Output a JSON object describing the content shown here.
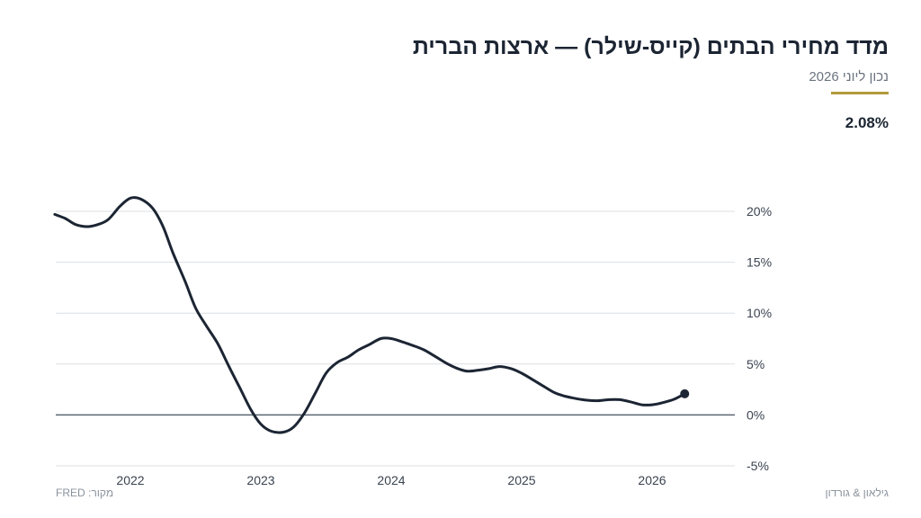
{
  "header": {
    "title": "מדד מחירי הבתים (קייס-שילר) — ארצות הברית",
    "subtitle": "נכון ליוני 2026",
    "latest_value": "2.08%",
    "accent_color": "#b39a3c"
  },
  "footer": {
    "source": "מקור: FRED",
    "brand": "גילאון & גורדון"
  },
  "chart_data": {
    "type": "line",
    "title": "מדד מחירי הבתים (קייס-שילר) — ארצות הברית",
    "ylim": [
      -5,
      20
    ],
    "y_ticks": [
      20,
      15,
      10,
      5,
      0,
      -5
    ],
    "y_tick_labels": [
      "20%",
      "15%",
      "10%",
      "5%",
      "0%",
      "-5%"
    ],
    "x_ticks": [
      2022,
      2023,
      2024,
      2025,
      2026
    ],
    "x_tick_labels": [
      "2022",
      "2023",
      "2024",
      "2025",
      "2026"
    ],
    "grid": true,
    "line_color": "#1c2533",
    "series": [
      {
        "values": [
          {
            "x": 2021.42,
            "y": 19.7
          },
          {
            "x": 2021.5,
            "y": 19.3
          },
          {
            "x": 2021.58,
            "y": 18.7
          },
          {
            "x": 2021.67,
            "y": 18.5
          },
          {
            "x": 2021.75,
            "y": 18.7
          },
          {
            "x": 2021.83,
            "y": 19.2
          },
          {
            "x": 2021.92,
            "y": 20.5
          },
          {
            "x": 2022.0,
            "y": 21.3
          },
          {
            "x": 2022.08,
            "y": 21.2
          },
          {
            "x": 2022.17,
            "y": 20.3
          },
          {
            "x": 2022.25,
            "y": 18.5
          },
          {
            "x": 2022.33,
            "y": 15.8
          },
          {
            "x": 2022.42,
            "y": 13.1
          },
          {
            "x": 2022.5,
            "y": 10.5
          },
          {
            "x": 2022.58,
            "y": 8.8
          },
          {
            "x": 2022.67,
            "y": 7.0
          },
          {
            "x": 2022.75,
            "y": 4.9
          },
          {
            "x": 2022.83,
            "y": 2.9
          },
          {
            "x": 2022.92,
            "y": 0.6
          },
          {
            "x": 2023.0,
            "y": -0.9
          },
          {
            "x": 2023.08,
            "y": -1.6
          },
          {
            "x": 2023.17,
            "y": -1.7
          },
          {
            "x": 2023.25,
            "y": -1.2
          },
          {
            "x": 2023.33,
            "y": 0.1
          },
          {
            "x": 2023.42,
            "y": 2.2
          },
          {
            "x": 2023.5,
            "y": 4.1
          },
          {
            "x": 2023.58,
            "y": 5.1
          },
          {
            "x": 2023.67,
            "y": 5.7
          },
          {
            "x": 2023.75,
            "y": 6.4
          },
          {
            "x": 2023.83,
            "y": 6.9
          },
          {
            "x": 2023.92,
            "y": 7.5
          },
          {
            "x": 2024.0,
            "y": 7.5
          },
          {
            "x": 2024.08,
            "y": 7.2
          },
          {
            "x": 2024.17,
            "y": 6.8
          },
          {
            "x": 2024.25,
            "y": 6.4
          },
          {
            "x": 2024.33,
            "y": 5.8
          },
          {
            "x": 2024.42,
            "y": 5.1
          },
          {
            "x": 2024.5,
            "y": 4.6
          },
          {
            "x": 2024.58,
            "y": 4.3
          },
          {
            "x": 2024.67,
            "y": 4.4
          },
          {
            "x": 2024.75,
            "y": 4.55
          },
          {
            "x": 2024.83,
            "y": 4.75
          },
          {
            "x": 2024.92,
            "y": 4.55
          },
          {
            "x": 2025.0,
            "y": 4.1
          },
          {
            "x": 2025.08,
            "y": 3.5
          },
          {
            "x": 2025.17,
            "y": 2.8
          },
          {
            "x": 2025.25,
            "y": 2.2
          },
          {
            "x": 2025.33,
            "y": 1.85
          },
          {
            "x": 2025.42,
            "y": 1.6
          },
          {
            "x": 2025.5,
            "y": 1.45
          },
          {
            "x": 2025.58,
            "y": 1.4
          },
          {
            "x": 2025.67,
            "y": 1.5
          },
          {
            "x": 2025.75,
            "y": 1.5
          },
          {
            "x": 2025.83,
            "y": 1.3
          },
          {
            "x": 2025.92,
            "y": 1.0
          },
          {
            "x": 2026.0,
            "y": 1.0
          },
          {
            "x": 2026.08,
            "y": 1.2
          },
          {
            "x": 2026.17,
            "y": 1.55
          },
          {
            "x": 2026.25,
            "y": 2.08
          }
        ]
      }
    ]
  }
}
